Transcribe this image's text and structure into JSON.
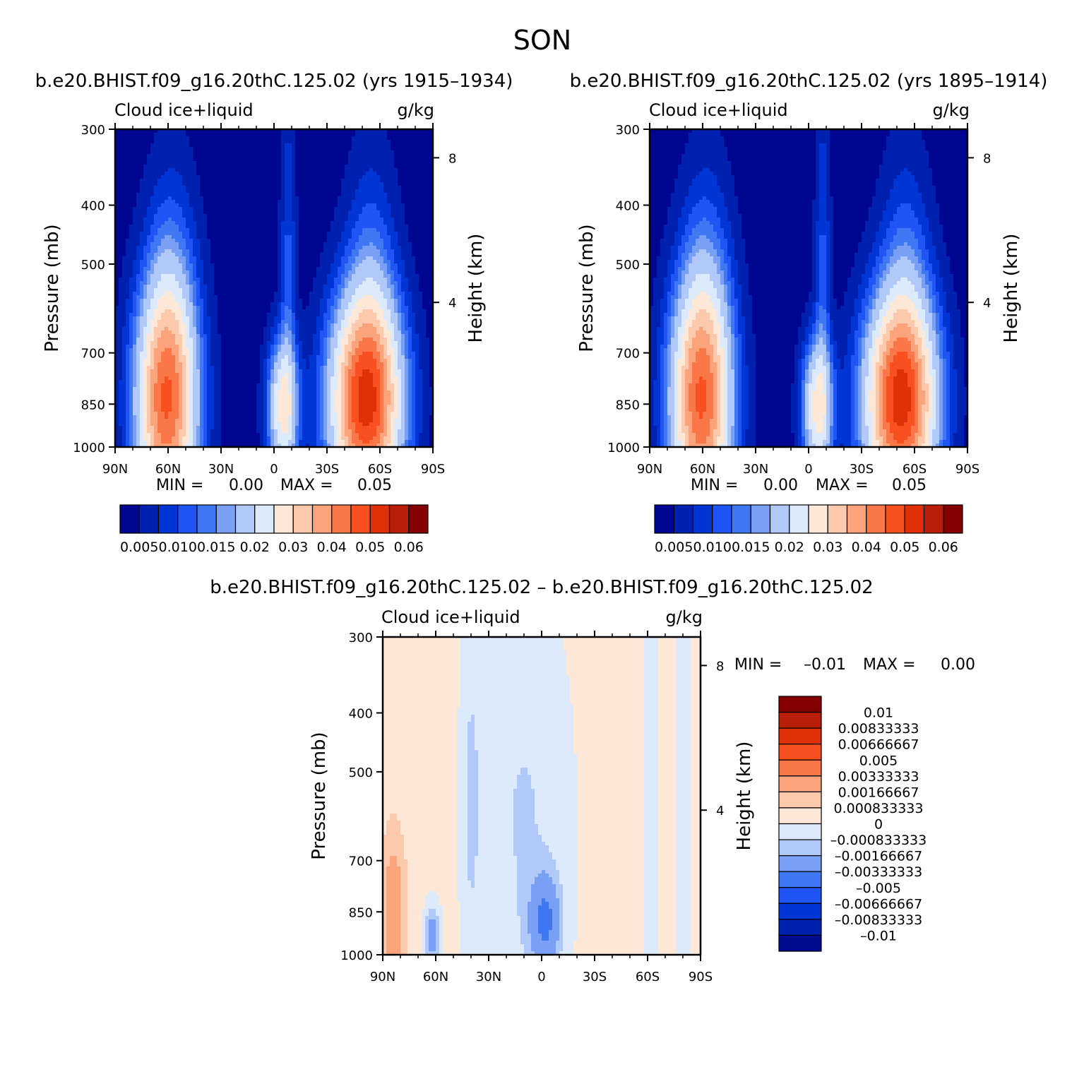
{
  "page_title": "SON",
  "colors": {
    "ctrl_scale": [
      "#00068f",
      "#0020b0",
      "#0035d5",
      "#1f55f5",
      "#3f78f2",
      "#7aa0f5",
      "#b0c9f9",
      "#dceafc",
      "#fde8d8",
      "#fcc9ad",
      "#fba37a",
      "#f97748",
      "#f8501e",
      "#e03008",
      "#b81e08",
      "#840000"
    ],
    "diff_scale": [
      "#000a90",
      "#0020b0",
      "#0035d5",
      "#1f55f5",
      "#3f78f2",
      "#7aa0f5",
      "#b0c9f9",
      "#dceafc",
      "#fde8d8",
      "#fcc9ad",
      "#fba37a",
      "#f97748",
      "#f8501e",
      "#e03008",
      "#b81e08",
      "#840000"
    ]
  },
  "chart_data": [
    {
      "type": "heatmap",
      "title": "b.e20.BHIST.f09_g16.20thC.125.02 (yrs 1915–1934)",
      "variable": "Cloud ice+liquid",
      "units": "g/kg",
      "ylabel": "Pressure (mb)",
      "ylabel_right": "Height (km)",
      "x_ticks": [
        "90N",
        "60N",
        "30N",
        "0",
        "30S",
        "60S",
        "90S"
      ],
      "y_ticks": [
        300,
        400,
        500,
        700,
        850,
        1000
      ],
      "y_scale": "log",
      "ylim": [
        1000,
        300
      ],
      "height_ticks": [
        8,
        4
      ],
      "min_text": "MIN =",
      "min_value": "0.00",
      "max_text": "MAX =",
      "max_value": "0.05",
      "colorbar_labels": [
        "0.005",
        "0.010",
        "0.015",
        "0.02",
        "0.03",
        "0.04",
        "0.05",
        "0.06"
      ],
      "field": {
        "levels": [
          0.0025,
          0.005,
          0.0075,
          0.01,
          0.0125,
          0.015,
          0.02,
          0.025,
          0.03,
          0.035,
          0.04,
          0.045,
          0.05,
          0.055,
          0.06
        ],
        "background": 0.001,
        "blobs": [
          {
            "lat": 61,
            "p": 845,
            "amp": 0.043,
            "slat": 12,
            "sp": 0.32
          },
          {
            "lat": 58,
            "p": 520,
            "amp": 0.006,
            "slat": 10,
            "sp": 0.35
          },
          {
            "lat": -52,
            "p": 845,
            "amp": 0.05,
            "slat": 14,
            "sp": 0.28
          },
          {
            "lat": -55,
            "p": 520,
            "amp": 0.007,
            "slat": 10,
            "sp": 0.35
          },
          {
            "lat": -5,
            "p": 860,
            "amp": 0.026,
            "slat": 6,
            "sp": 0.18
          },
          {
            "lat": -8,
            "p": 500,
            "amp": 0.007,
            "slat": 3,
            "sp": 0.45
          }
        ]
      }
    },
    {
      "type": "heatmap",
      "title": "b.e20.BHIST.f09_g16.20thC.125.02 (yrs 1895–1914)",
      "variable": "Cloud ice+liquid",
      "units": "g/kg",
      "ylabel": "Pressure (mb)",
      "ylabel_right": "Height (km)",
      "x_ticks": [
        "90N",
        "60N",
        "30N",
        "0",
        "30S",
        "60S",
        "90S"
      ],
      "y_ticks": [
        300,
        400,
        500,
        700,
        850,
        1000
      ],
      "y_scale": "log",
      "ylim": [
        1000,
        300
      ],
      "height_ticks": [
        8,
        4
      ],
      "min_text": "MIN =",
      "min_value": "0.00",
      "max_text": "MAX =",
      "max_value": "0.05",
      "colorbar_labels": [
        "0.005",
        "0.010",
        "0.015",
        "0.02",
        "0.03",
        "0.04",
        "0.05",
        "0.06"
      ],
      "field": {
        "levels": [
          0.0025,
          0.005,
          0.0075,
          0.01,
          0.0125,
          0.015,
          0.02,
          0.025,
          0.03,
          0.035,
          0.04,
          0.045,
          0.05,
          0.055,
          0.06
        ],
        "background": 0.001,
        "blobs": [
          {
            "lat": 61,
            "p": 845,
            "amp": 0.043,
            "slat": 12,
            "sp": 0.32
          },
          {
            "lat": 58,
            "p": 520,
            "amp": 0.006,
            "slat": 10,
            "sp": 0.35
          },
          {
            "lat": -52,
            "p": 845,
            "amp": 0.05,
            "slat": 14,
            "sp": 0.28
          },
          {
            "lat": -55,
            "p": 520,
            "amp": 0.007,
            "slat": 10,
            "sp": 0.35
          },
          {
            "lat": -5,
            "p": 860,
            "amp": 0.026,
            "slat": 6,
            "sp": 0.18
          },
          {
            "lat": -8,
            "p": 500,
            "amp": 0.007,
            "slat": 3,
            "sp": 0.45
          }
        ]
      }
    },
    {
      "type": "heatmap",
      "title": "b.e20.BHIST.f09_g16.20thC.125.02 – b.e20.BHIST.f09_g16.20thC.125.02",
      "variable": "Cloud ice+liquid",
      "units": "g/kg",
      "ylabel": "Pressure (mb)",
      "ylabel_right": "Height (km)",
      "x_ticks": [
        "90N",
        "60N",
        "30N",
        "0",
        "30S",
        "60S",
        "90S"
      ],
      "y_ticks": [
        300,
        400,
        500,
        700,
        850,
        1000
      ],
      "y_scale": "log",
      "ylim": [
        1000,
        300
      ],
      "height_ticks": [
        8,
        4
      ],
      "min_text": "MIN =",
      "min_value": "–0.01",
      "max_text": "MAX =",
      "max_value": "0.00",
      "colorbar_labels": [
        "0.01",
        "0.00833333",
        "0.00666667",
        "0.005",
        "0.00333333",
        "0.00166667",
        "0.000833333",
        "0",
        "–0.000833333",
        "–0.00166667",
        "–0.00333333",
        "–0.005",
        "–0.00666667",
        "–0.00833333",
        "–0.01"
      ],
      "field": {
        "levels": [
          -0.01,
          -0.00833333,
          -0.00666667,
          -0.005,
          -0.00333333,
          -0.00166667,
          -0.000833333,
          0,
          0.000833333,
          0.00166667,
          0.00333333,
          0.005,
          0.00666667,
          0.00833333,
          0.01
        ],
        "background": 0.0003,
        "blobs": [
          {
            "lat": 84,
            "p": 850,
            "amp": 0.0022,
            "slat": 5,
            "sp": 0.22
          },
          {
            "lat": 62,
            "p": 930,
            "amp": -0.0028,
            "slat": 3,
            "sp": 0.08
          },
          {
            "lat": 10,
            "p": 600,
            "amp": -0.0012,
            "slat": 18,
            "sp": 0.6
          },
          {
            "lat": -2,
            "p": 880,
            "amp": -0.0035,
            "slat": 6,
            "sp": 0.12
          },
          {
            "lat": 40,
            "p": 550,
            "amp": -0.0011,
            "slat": 4,
            "sp": 0.5
          },
          {
            "lat": -62,
            "p": 550,
            "amp": -0.0011,
            "slat": 3,
            "sp": 0.6
          },
          {
            "lat": -80,
            "p": 550,
            "amp": -0.0011,
            "slat": 3,
            "sp": 0.6
          }
        ]
      }
    }
  ]
}
